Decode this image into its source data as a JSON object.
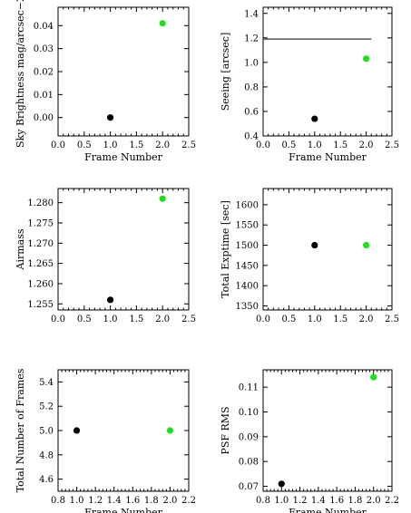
{
  "colors": {
    "background": "#ffffff",
    "axes": "#000000",
    "point_black": "#000000",
    "point_green": "#22dd22",
    "line": "#555555"
  },
  "chart_data": [
    {
      "type": "scatter",
      "xlabel": "Frame Number",
      "ylabel": "Sky Brightness mag/arcsec−2",
      "xlim": [
        0.0,
        2.5
      ],
      "ylim": [
        -0.008,
        0.048
      ],
      "xticks": [
        0.0,
        0.5,
        1.0,
        1.5,
        2.0,
        2.5
      ],
      "xtick_labels": [
        "0.0",
        "0.5",
        "1.0",
        "1.5",
        "2.0",
        "2.5"
      ],
      "yticks": [
        0.0,
        0.01,
        0.02,
        0.03,
        0.04
      ],
      "ytick_labels": [
        "0.00",
        "0.01",
        "0.02",
        "0.03",
        "0.04"
      ],
      "points": [
        {
          "x": 1.0,
          "y": 0.0,
          "color": "#000000"
        },
        {
          "x": 2.0,
          "y": 0.041,
          "color": "#22dd22"
        }
      ],
      "lines": []
    },
    {
      "type": "scatter",
      "xlabel": "Frame Number",
      "ylabel": "Seeing [arcsec]",
      "xlim": [
        0.0,
        2.5
      ],
      "ylim": [
        0.4,
        1.45
      ],
      "xticks": [
        0.0,
        0.5,
        1.0,
        1.5,
        2.0,
        2.5
      ],
      "xtick_labels": [
        "0.0",
        "0.5",
        "1.0",
        "1.5",
        "2.0",
        "2.5"
      ],
      "yticks": [
        0.4,
        0.6,
        0.8,
        1.0,
        1.2,
        1.4
      ],
      "ytick_labels": [
        "0.4",
        "0.6",
        "0.8",
        "1.0",
        "1.2",
        "1.4"
      ],
      "points": [
        {
          "x": 1.0,
          "y": 0.54,
          "color": "#000000"
        },
        {
          "x": 2.0,
          "y": 1.03,
          "color": "#22dd22"
        }
      ],
      "lines": [
        {
          "x1": 0.0,
          "x2": 2.1,
          "y": 1.19
        }
      ]
    },
    {
      "type": "scatter",
      "xlabel": "",
      "ylabel": "Airmass",
      "xlim": [
        0.0,
        2.5
      ],
      "ylim": [
        1.2535,
        1.2835
      ],
      "xticks": [
        0.0,
        0.5,
        1.0,
        1.5,
        2.0,
        2.5
      ],
      "xtick_labels": [
        "0.0",
        "0.5",
        "1.0",
        "1.5",
        "2.0",
        "2.5"
      ],
      "yticks": [
        1.255,
        1.26,
        1.265,
        1.27,
        1.275,
        1.28
      ],
      "ytick_labels": [
        "1.255",
        "1.260",
        "1.265",
        "1.270",
        "1.275",
        "1.280"
      ],
      "points": [
        {
          "x": 1.0,
          "y": 1.256,
          "color": "#000000"
        },
        {
          "x": 2.0,
          "y": 1.281,
          "color": "#22dd22"
        }
      ],
      "lines": []
    },
    {
      "type": "scatter",
      "xlabel": "",
      "ylabel": "Total Exptime [sec]",
      "xlim": [
        0.0,
        2.5
      ],
      "ylim": [
        1340,
        1640
      ],
      "xticks": [
        0.0,
        0.5,
        1.0,
        1.5,
        2.0,
        2.5
      ],
      "xtick_labels": [
        "0.0",
        "0.5",
        "1.0",
        "1.5",
        "2.0",
        "2.5"
      ],
      "yticks": [
        1350,
        1400,
        1450,
        1500,
        1550,
        1600
      ],
      "ytick_labels": [
        "1350",
        "1400",
        "1450",
        "1500",
        "1550",
        "1600"
      ],
      "points": [
        {
          "x": 1.0,
          "y": 1500,
          "color": "#000000"
        },
        {
          "x": 2.0,
          "y": 1500,
          "color": "#22dd22"
        }
      ],
      "lines": []
    },
    {
      "type": "scatter",
      "xlabel": "Frame Number",
      "ylabel": "Total Number of Frames",
      "xlim": [
        0.8,
        2.2
      ],
      "ylim": [
        4.5,
        5.5
      ],
      "xticks": [
        0.8,
        1.0,
        1.2,
        1.4,
        1.6,
        1.8,
        2.0,
        2.2
      ],
      "xtick_labels": [
        "0.8",
        "1.0",
        "1.2",
        "1.4",
        "1.6",
        "1.8",
        "2.0",
        "2.2"
      ],
      "yticks": [
        4.6,
        4.8,
        5.0,
        5.2,
        5.4
      ],
      "ytick_labels": [
        "4.6",
        "4.8",
        "5.0",
        "5.2",
        "5.4"
      ],
      "points": [
        {
          "x": 1.0,
          "y": 5.0,
          "color": "#000000"
        },
        {
          "x": 2.0,
          "y": 5.0,
          "color": "#22dd22"
        }
      ],
      "lines": []
    },
    {
      "type": "scatter",
      "xlabel": "Frame Number",
      "ylabel": "PSF RMS",
      "xlim": [
        0.8,
        2.2
      ],
      "ylim": [
        0.068,
        0.117
      ],
      "xticks": [
        0.8,
        1.0,
        1.2,
        1.4,
        1.6,
        1.8,
        2.0,
        2.2
      ],
      "xtick_labels": [
        "0.8",
        "1.0",
        "1.2",
        "1.4",
        "1.6",
        "1.8",
        "2.0",
        "2.2"
      ],
      "yticks": [
        0.07,
        0.08,
        0.09,
        0.1,
        0.11
      ],
      "ytick_labels": [
        "0.07",
        "0.08",
        "0.09",
        "0.10",
        "0.11"
      ],
      "points": [
        {
          "x": 1.0,
          "y": 0.071,
          "color": "#000000"
        },
        {
          "x": 2.0,
          "y": 0.114,
          "color": "#22dd22"
        }
      ],
      "lines": []
    }
  ]
}
